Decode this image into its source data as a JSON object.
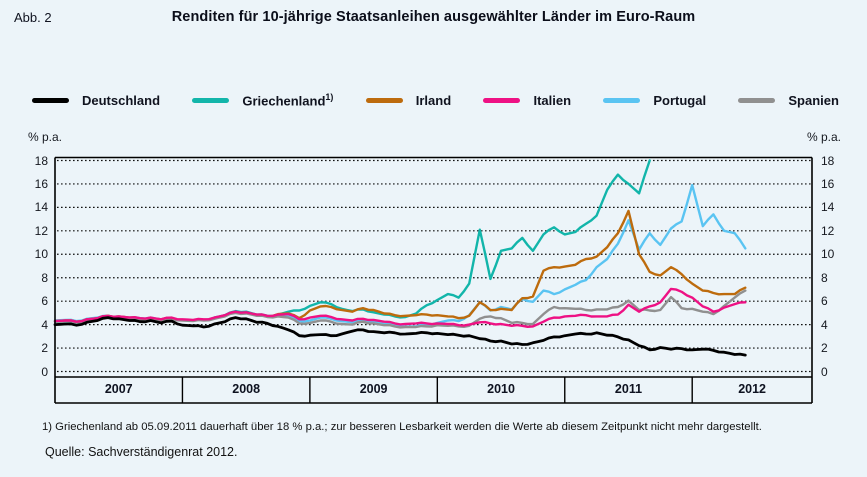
{
  "figure_label": "Abb. 2",
  "title": "Renditen für 10-jährige Staatsanleihen ausgewählter Länder im Euro-Raum",
  "axis_unit_left": "% p.a.",
  "axis_unit_right": "% p.a.",
  "footnote": "1) Griechenland ab 05.09.2011 dauerhaft über 18 % p.a.; zur besseren Lesbarkeit werden die Werte ab diesem Zeitpunkt nicht mehr dargestellt.",
  "source": "Quelle: Sachverständigenrat 2012.",
  "chart_data": {
    "type": "line",
    "title": "Renditen für 10-jährige Staatsanleihen ausgewählter Länder im Euro-Raum",
    "ylabel": "% p.a.",
    "ylim": [
      0,
      18
    ],
    "ytick_step": 2,
    "grid": "horizontal-dotted",
    "legend_position": "top",
    "x_start_year": 2007,
    "x_end_year_fraction": 2012.94,
    "x_years": [
      "2007",
      "2008",
      "2009",
      "2010",
      "2011",
      "2012"
    ],
    "x_unit": "monthly from 2007-01",
    "series": [
      {
        "name": "Deutschland",
        "superscript": "",
        "color": "#000000",
        "line_width": 2.8,
        "values": [
          4.0,
          4.05,
          3.95,
          4.2,
          4.35,
          4.6,
          4.5,
          4.35,
          4.25,
          4.35,
          4.15,
          4.3,
          3.95,
          3.9,
          3.8,
          4.05,
          4.25,
          4.6,
          4.5,
          4.2,
          4.1,
          3.85,
          3.55,
          3.05,
          3.1,
          3.15,
          3.05,
          3.2,
          3.45,
          3.55,
          3.4,
          3.3,
          3.3,
          3.2,
          3.25,
          3.3,
          3.25,
          3.15,
          3.1,
          3.05,
          2.8,
          2.6,
          2.6,
          2.35,
          2.3,
          2.45,
          2.65,
          2.95,
          3.05,
          3.2,
          3.2,
          3.3,
          3.1,
          2.95,
          2.7,
          2.2,
          1.85,
          2.05,
          1.9,
          1.95,
          1.85,
          1.9,
          1.8,
          1.65,
          1.45,
          1.4
        ]
      },
      {
        "name": "Griechenland",
        "superscript": "1)",
        "color": "#12b5aa",
        "line_width": 2.4,
        "values": [
          4.25,
          4.3,
          4.2,
          4.4,
          4.55,
          4.7,
          4.65,
          4.55,
          4.5,
          4.55,
          4.4,
          4.55,
          4.4,
          4.35,
          4.4,
          4.6,
          4.8,
          5.15,
          5.1,
          4.85,
          4.75,
          4.85,
          5.1,
          5.2,
          5.6,
          5.9,
          5.75,
          5.35,
          5.15,
          5.3,
          5.05,
          4.85,
          4.7,
          4.65,
          4.95,
          5.65,
          6.1,
          6.6,
          6.3,
          7.5,
          12.1,
          7.9,
          10.3,
          10.5,
          11.4,
          10.3,
          11.7,
          12.3,
          11.7,
          11.9,
          12.6,
          13.3,
          15.5,
          16.8,
          16.0,
          15.2,
          18.0
        ]
      },
      {
        "name": "Irland",
        "superscript": "",
        "color": "#bd6b0d",
        "line_width": 2.4,
        "values": [
          4.3,
          4.35,
          4.25,
          4.45,
          4.55,
          4.75,
          4.7,
          4.6,
          4.5,
          4.55,
          4.45,
          4.55,
          4.4,
          4.35,
          4.4,
          4.55,
          4.75,
          5.05,
          5.0,
          4.8,
          4.7,
          4.9,
          4.95,
          4.55,
          5.2,
          5.55,
          5.5,
          5.25,
          5.1,
          5.4,
          5.25,
          4.95,
          4.8,
          4.75,
          4.8,
          4.85,
          4.8,
          4.7,
          4.55,
          4.75,
          5.9,
          5.25,
          5.35,
          5.25,
          6.25,
          6.4,
          8.6,
          8.9,
          8.95,
          9.1,
          9.6,
          9.8,
          10.6,
          11.8,
          13.7,
          10.0,
          8.5,
          8.2,
          8.9,
          8.3,
          7.5,
          6.9,
          6.7,
          6.6,
          6.6,
          7.15
        ]
      },
      {
        "name": "Italien",
        "superscript": "",
        "color": "#ee1184",
        "line_width": 2.4,
        "values": [
          4.3,
          4.35,
          4.25,
          4.45,
          4.55,
          4.75,
          4.7,
          4.6,
          4.55,
          4.6,
          4.45,
          4.6,
          4.45,
          4.4,
          4.45,
          4.6,
          4.8,
          5.1,
          5.05,
          4.85,
          4.75,
          4.85,
          4.9,
          4.45,
          4.6,
          4.75,
          4.65,
          4.45,
          4.35,
          4.5,
          4.4,
          4.25,
          4.1,
          4.05,
          4.1,
          4.1,
          4.1,
          4.05,
          3.95,
          4.0,
          4.2,
          4.1,
          4.05,
          3.9,
          3.9,
          3.85,
          4.25,
          4.6,
          4.7,
          4.75,
          4.8,
          4.7,
          4.7,
          4.85,
          5.7,
          5.1,
          5.55,
          5.9,
          7.05,
          6.8,
          6.3,
          5.55,
          5.1,
          5.45,
          5.75,
          5.9
        ]
      },
      {
        "name": "Portugal",
        "superscript": "",
        "color": "#5ac4f2",
        "line_width": 2.4,
        "values": [
          4.35,
          4.4,
          4.3,
          4.5,
          4.6,
          4.75,
          4.7,
          4.6,
          4.55,
          4.6,
          4.45,
          4.55,
          4.4,
          4.35,
          4.4,
          4.55,
          4.75,
          5.05,
          5.0,
          4.8,
          4.7,
          4.8,
          4.7,
          4.3,
          4.35,
          4.6,
          4.5,
          4.3,
          4.2,
          4.4,
          4.25,
          4.05,
          3.95,
          3.85,
          3.85,
          4.0,
          4.15,
          4.35,
          4.3,
          4.8,
          5.9,
          5.2,
          5.5,
          5.3,
          6.2,
          5.95,
          6.9,
          6.6,
          7.0,
          7.4,
          7.8,
          8.9,
          9.6,
          10.9,
          12.9,
          10.4,
          11.8,
          10.8,
          12.2,
          12.8,
          15.9,
          12.4,
          13.4,
          12.0,
          11.8,
          10.5
        ]
      },
      {
        "name": "Spanien",
        "superscript": "",
        "color": "#909090",
        "line_width": 2.4,
        "values": [
          4.25,
          4.3,
          4.2,
          4.4,
          4.5,
          4.7,
          4.65,
          4.55,
          4.45,
          4.5,
          4.35,
          4.5,
          4.35,
          4.3,
          4.35,
          4.5,
          4.7,
          5.0,
          4.95,
          4.75,
          4.65,
          4.7,
          4.6,
          4.1,
          4.15,
          4.35,
          4.25,
          4.05,
          4.0,
          4.25,
          4.1,
          3.95,
          3.85,
          3.8,
          3.8,
          3.85,
          3.95,
          3.9,
          3.85,
          3.9,
          4.5,
          4.7,
          4.55,
          4.15,
          4.15,
          4.05,
          4.9,
          5.5,
          5.4,
          5.35,
          5.25,
          5.3,
          5.3,
          5.5,
          6.05,
          5.25,
          5.2,
          5.25,
          6.35,
          5.4,
          5.35,
          5.1,
          4.9,
          5.6,
          6.3,
          6.9
        ]
      }
    ]
  }
}
